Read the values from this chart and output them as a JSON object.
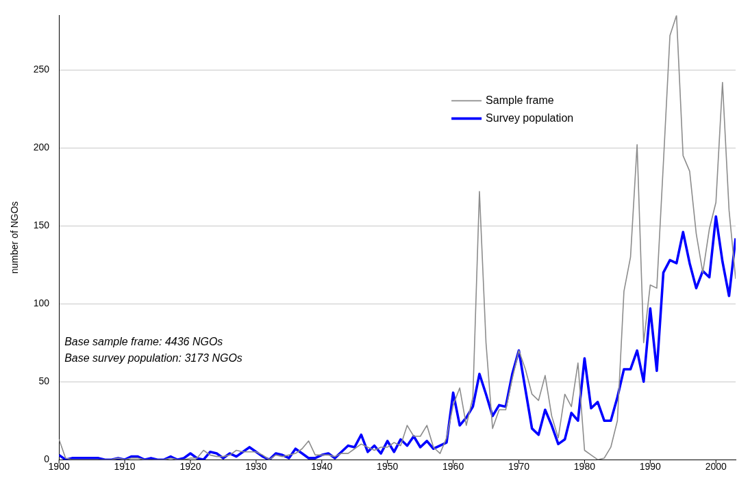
{
  "chart_data": {
    "type": "line",
    "ylabel": "number of NGOs",
    "x": [
      1900,
      1901,
      1902,
      1903,
      1904,
      1905,
      1906,
      1907,
      1908,
      1909,
      1910,
      1911,
      1912,
      1913,
      1914,
      1915,
      1916,
      1917,
      1918,
      1919,
      1920,
      1921,
      1922,
      1923,
      1924,
      1925,
      1926,
      1927,
      1928,
      1929,
      1930,
      1931,
      1932,
      1933,
      1934,
      1935,
      1936,
      1937,
      1938,
      1939,
      1940,
      1941,
      1942,
      1943,
      1944,
      1945,
      1946,
      1947,
      1948,
      1949,
      1950,
      1951,
      1952,
      1953,
      1954,
      1955,
      1956,
      1957,
      1958,
      1959,
      1960,
      1961,
      1962,
      1963,
      1964,
      1965,
      1966,
      1967,
      1968,
      1969,
      1970,
      1971,
      1972,
      1973,
      1974,
      1975,
      1976,
      1977,
      1978,
      1979,
      1980,
      1981,
      1982,
      1983,
      1984,
      1985,
      1986,
      1987,
      1988,
      1989,
      1990,
      1991,
      1992,
      1993,
      1994,
      1995,
      1996,
      1997,
      1998,
      1999,
      2000,
      2001,
      2002,
      2003
    ],
    "series": [
      {
        "name": "Sample frame",
        "color": "#8c8c8c",
        "values": [
          13,
          1,
          0,
          0,
          0,
          0,
          0,
          0,
          0,
          1,
          0,
          1,
          1,
          0,
          0,
          0,
          0,
          1,
          0,
          0,
          1,
          1,
          6,
          3,
          2,
          2,
          3,
          6,
          5,
          5,
          5,
          3,
          0,
          3,
          2,
          3,
          4,
          7,
          12,
          3,
          3,
          3,
          2,
          4,
          4,
          7,
          10,
          8,
          6,
          8,
          8,
          11,
          9,
          22,
          15,
          15,
          22,
          8,
          4,
          14,
          35,
          46,
          22,
          40,
          172,
          75,
          20,
          32,
          32,
          52,
          70,
          58,
          42,
          38,
          54,
          28,
          14,
          42,
          34,
          62,
          6,
          3,
          0,
          1,
          8,
          25,
          108,
          130,
          202,
          75,
          112,
          110,
          190,
          272,
          285,
          195,
          185,
          145,
          120,
          148,
          165,
          242,
          160,
          116
        ]
      },
      {
        "name": "Survey population",
        "color": "#0000ff",
        "values": [
          3,
          0,
          1,
          1,
          1,
          1,
          1,
          0,
          0,
          1,
          0,
          2,
          2,
          0,
          1,
          0,
          0,
          2,
          0,
          1,
          4,
          1,
          0,
          5,
          4,
          1,
          4,
          2,
          5,
          8,
          5,
          2,
          0,
          4,
          3,
          1,
          7,
          4,
          1,
          1,
          3,
          4,
          1,
          5,
          9,
          8,
          16,
          5,
          9,
          4,
          12,
          5,
          13,
          9,
          15,
          8,
          12,
          7,
          9,
          11,
          43,
          22,
          27,
          34,
          55,
          42,
          28,
          35,
          34,
          55,
          70,
          45,
          20,
          16,
          32,
          22,
          10,
          13,
          30,
          25,
          65,
          33,
          37,
          25,
          25,
          40,
          58,
          58,
          70,
          50,
          97,
          57,
          120,
          128,
          126,
          146,
          126,
          110,
          121,
          117,
          156,
          127,
          105,
          142
        ]
      }
    ],
    "xlim": [
      1900,
      2003
    ],
    "xticks": [
      1900,
      1910,
      1920,
      1930,
      1940,
      1950,
      1960,
      1970,
      1980,
      1990,
      2000
    ],
    "ylim": [
      0,
      285
    ],
    "yticks": [
      0,
      50,
      100,
      150,
      200,
      250
    ],
    "grid": "y",
    "legend": "top",
    "marker": "none",
    "line_style": "solid",
    "annotations": [
      "Base sample frame: 4436 NGOs",
      "Base survey population: 3173 NGOs"
    ]
  }
}
